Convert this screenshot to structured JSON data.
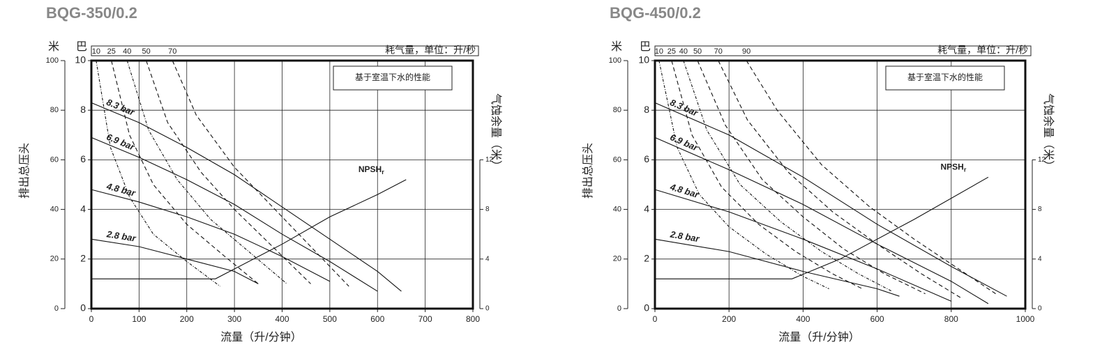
{
  "chart_data": [
    {
      "type": "line",
      "title": "BQG-350/0.2",
      "note": "基于室温下水的性能",
      "top_label": "耗气量，单位：升/秒",
      "x_label": "流量（升/分钟）",
      "y_label": "排出总压头",
      "y2_label": "气蚀余量（米）",
      "y_unit": "巴",
      "y3_unit": "米",
      "xlim": [
        0,
        800
      ],
      "xticks": [
        0,
        100,
        200,
        300,
        400,
        500,
        600,
        700,
        800
      ],
      "ylim": [
        0,
        10
      ],
      "yticks": [
        0,
        2,
        4,
        6,
        8,
        10
      ],
      "y3lim": [
        0,
        100
      ],
      "y3ticks": [
        0,
        20,
        40,
        60,
        80,
        100
      ],
      "y2lim": [
        0,
        20
      ],
      "y2ticks": [
        0,
        4,
        8,
        12
      ],
      "grid": true,
      "series": [
        {
          "name": "8.3 bar",
          "style": "solid",
          "x": [
            0,
            100,
            200,
            300,
            400,
            500,
            600,
            650
          ],
          "values": [
            8.3,
            7.5,
            6.5,
            5.4,
            4.1,
            2.8,
            1.5,
            0.7
          ]
        },
        {
          "name": "6.9 bar",
          "style": "solid",
          "x": [
            0,
            100,
            200,
            300,
            400,
            500,
            600
          ],
          "values": [
            6.9,
            6.1,
            5.2,
            4.2,
            3.0,
            1.9,
            0.7
          ]
        },
        {
          "name": "4.8 bar",
          "style": "solid",
          "x": [
            0,
            100,
            200,
            300,
            400,
            500
          ],
          "values": [
            4.8,
            4.3,
            3.7,
            3.0,
            2.1,
            1.1
          ]
        },
        {
          "name": "2.8 bar",
          "style": "solid",
          "x": [
            0,
            100,
            200,
            300,
            350
          ],
          "values": [
            2.8,
            2.5,
            2.0,
            1.5,
            1.0
          ]
        },
        {
          "name": "NPSH",
          "subscript": "r",
          "style": "solid",
          "axis": "y2",
          "x": [
            0,
            260,
            300,
            400,
            500,
            600,
            660
          ],
          "values": [
            2.4,
            2.4,
            3.2,
            5.2,
            7.4,
            9.2,
            10.4
          ]
        },
        {
          "name": "10",
          "style": "dotted",
          "x": [
            10,
            40,
            80,
            130,
            200,
            270
          ],
          "values": [
            10,
            6.5,
            4.5,
            3.0,
            1.9,
            0.9
          ]
        },
        {
          "name": "25",
          "style": "dashed",
          "x": [
            42,
            80,
            130,
            200,
            280,
            350
          ],
          "values": [
            10,
            7,
            5,
            3.4,
            2.1,
            1.0
          ]
        },
        {
          "name": "40",
          "style": "dotted",
          "x": [
            75,
            120,
            180,
            250,
            330,
            410
          ],
          "values": [
            10,
            7.2,
            5.2,
            3.6,
            2.3,
            1.0
          ]
        },
        {
          "name": "50",
          "style": "dashed",
          "x": [
            115,
            160,
            230,
            300,
            380,
            460
          ],
          "values": [
            10,
            7.5,
            5.5,
            4.0,
            2.5,
            1.0
          ]
        },
        {
          "name": "70",
          "style": "dashed",
          "x": [
            170,
            220,
            300,
            380,
            460,
            540
          ],
          "values": [
            10,
            7.8,
            5.7,
            4.1,
            2.5,
            0.9
          ]
        }
      ]
    },
    {
      "type": "line",
      "title": "BQG-450/0.2",
      "note": "基于室温下水的性能",
      "top_label": "耗气量，单位：升/秒",
      "x_label": "流量（升/分钟）",
      "y_label": "排出总压头",
      "y2_label": "气蚀余量（米）",
      "y_unit": "巴",
      "y3_unit": "米",
      "xlim": [
        0,
        1000
      ],
      "xticks": [
        0,
        200,
        400,
        600,
        800,
        1000
      ],
      "ylim": [
        0,
        10
      ],
      "yticks": [
        0,
        2,
        4,
        6,
        8,
        10
      ],
      "y3lim": [
        0,
        100
      ],
      "y3ticks": [
        0,
        20,
        40,
        60,
        80,
        100
      ],
      "y2lim": [
        0,
        20
      ],
      "y2ticks": [
        0,
        4,
        8,
        12
      ],
      "grid": true,
      "series": [
        {
          "name": "8.3 bar",
          "style": "solid",
          "x": [
            0,
            200,
            400,
            600,
            800,
            950
          ],
          "values": [
            8.3,
            7.0,
            5.3,
            3.4,
            1.7,
            0.5
          ]
        },
        {
          "name": "6.9 bar",
          "style": "solid",
          "x": [
            0,
            200,
            400,
            600,
            800,
            900
          ],
          "values": [
            6.9,
            5.6,
            4.2,
            2.6,
            1.1,
            0.2
          ]
        },
        {
          "name": "4.8 bar",
          "style": "solid",
          "x": [
            0,
            200,
            400,
            600,
            800
          ],
          "values": [
            4.8,
            3.9,
            2.8,
            1.6,
            0.3
          ]
        },
        {
          "name": "2.8 bar",
          "style": "solid",
          "x": [
            0,
            200,
            400,
            600,
            660
          ],
          "values": [
            2.8,
            2.3,
            1.5,
            0.8,
            0.5
          ]
        },
        {
          "name": "NPSH",
          "subscript": "r",
          "style": "solid",
          "axis": "y2",
          "x": [
            0,
            370,
            500,
            700,
            900
          ],
          "values": [
            2.4,
            2.4,
            4.0,
            7.2,
            10.6
          ]
        },
        {
          "name": "10",
          "style": "dotted",
          "x": [
            11,
            60,
            120,
            200,
            300,
            400,
            470
          ],
          "values": [
            10,
            6.5,
            4.6,
            3.3,
            2.2,
            1.3,
            0.8
          ]
        },
        {
          "name": "25",
          "style": "dashed",
          "x": [
            45,
            100,
            180,
            280,
            380,
            480,
            560
          ],
          "values": [
            10,
            7,
            4.9,
            3.4,
            2.3,
            1.4,
            0.8
          ]
        },
        {
          "name": "40",
          "style": "dotted",
          "x": [
            77,
            140,
            230,
            340,
            450,
            550,
            640
          ],
          "values": [
            10,
            7.2,
            5.0,
            3.5,
            2.3,
            1.4,
            0.7
          ]
        },
        {
          "name": "50",
          "style": "dashed",
          "x": [
            115,
            190,
            290,
            400,
            510,
            620,
            730
          ],
          "values": [
            10,
            7.4,
            5.2,
            3.7,
            2.4,
            1.4,
            0.6
          ]
        },
        {
          "name": "70",
          "style": "dashed",
          "x": [
            171,
            250,
            360,
            480,
            600,
            720,
            830
          ],
          "values": [
            10,
            7.6,
            5.5,
            3.9,
            2.6,
            1.4,
            0.4
          ]
        },
        {
          "name": "90",
          "style": "dashed",
          "x": [
            247,
            330,
            450,
            580,
            700,
            820,
            920
          ],
          "values": [
            10,
            8,
            5.8,
            4.1,
            2.8,
            1.6,
            0.6
          ]
        }
      ]
    }
  ]
}
